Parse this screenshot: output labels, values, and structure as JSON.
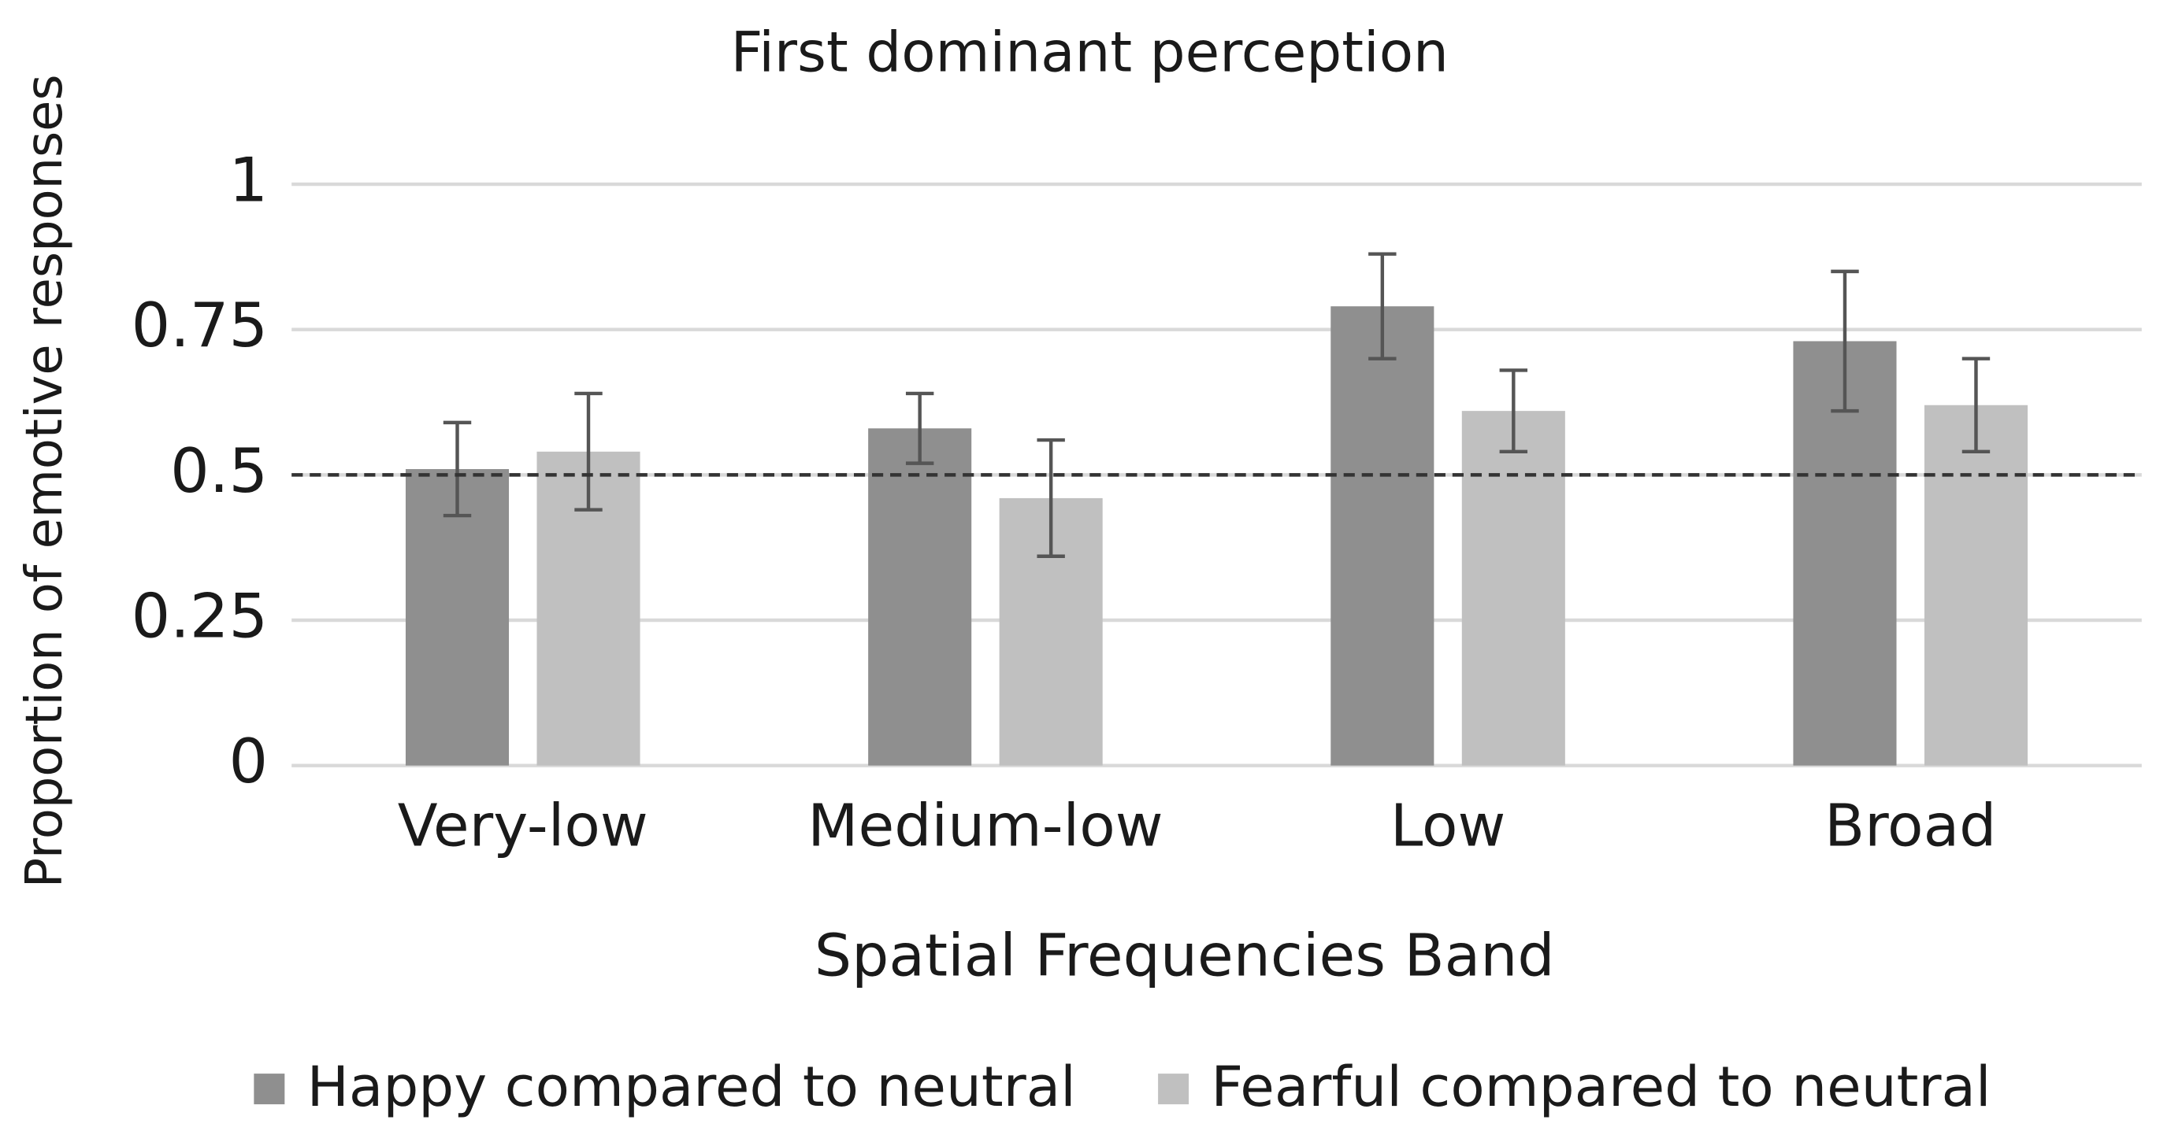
{
  "chart_data": {
    "type": "bar",
    "title": "First dominant perception",
    "x_label": "Spatial Frequencies Band",
    "y_label": "Proportion of emotive responses",
    "categories": [
      "Very-low",
      "Medium-low",
      "Low",
      "Broad"
    ],
    "series": [
      {
        "name": "Happy compared to neutral",
        "color": "#8f8f8f",
        "values": [
          0.51,
          0.58,
          0.79,
          0.73
        ],
        "errors": [
          0.08,
          0.06,
          0.09,
          0.12
        ]
      },
      {
        "name": "Fearful compared to neutral",
        "color": "#c0c0c0",
        "values": [
          0.54,
          0.46,
          0.61,
          0.62
        ],
        "errors": [
          0.1,
          0.1,
          0.07,
          0.08
        ]
      }
    ],
    "ylim": [
      0,
      1
    ],
    "yticks": [
      0,
      0.25,
      0.5,
      0.75,
      1
    ],
    "grid": true,
    "reference_line": 0.5,
    "legend": "bottom"
  }
}
